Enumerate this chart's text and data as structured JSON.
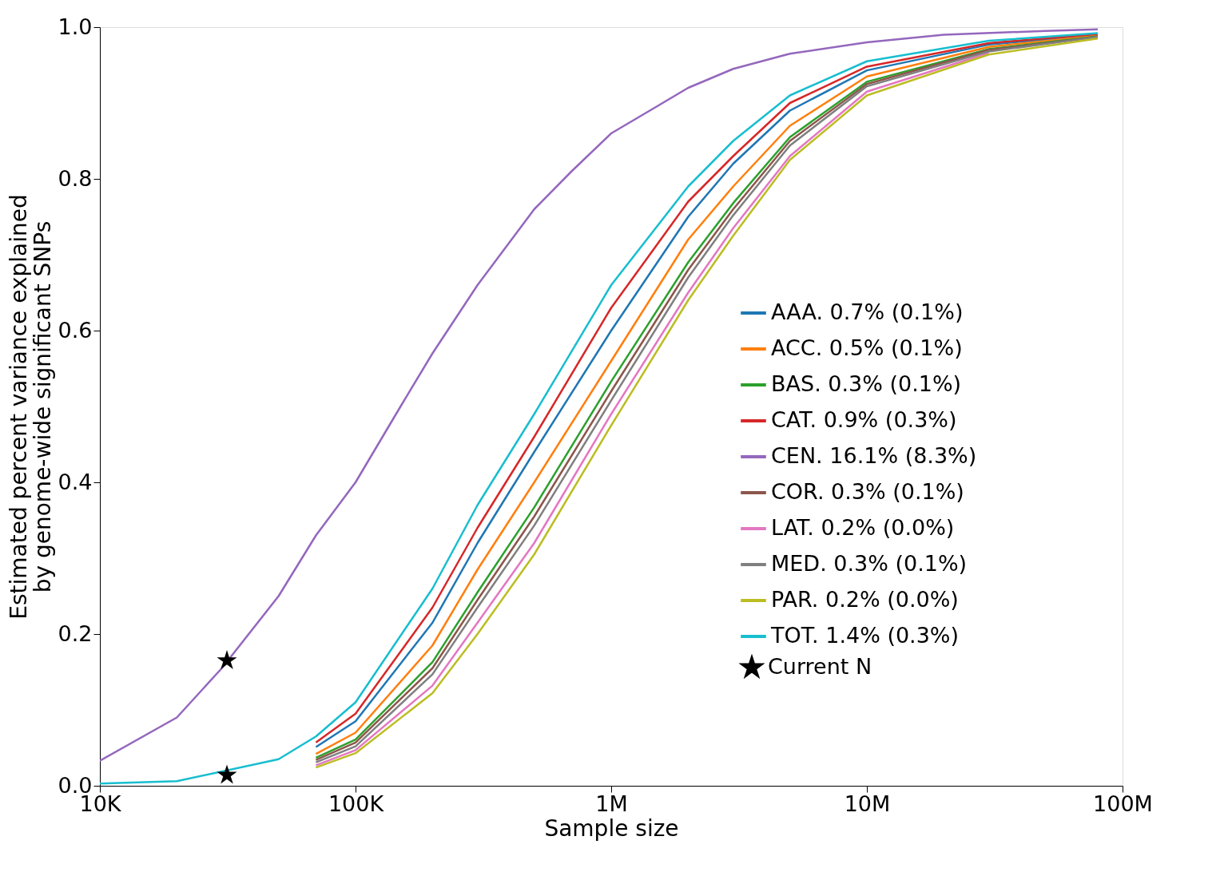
{
  "chart_data": {
    "type": "line",
    "xlabel": "Sample size",
    "ylabel": "Estimated percent variance explained\nby genome-wide significant SNPs",
    "log": "x",
    "grid": false,
    "legend": "right",
    "line_style": "solid",
    "marker": "none",
    "xlim": [
      10000,
      100000000
    ],
    "xticks": [
      {
        "value": 10000,
        "label": "10K"
      },
      {
        "value": 100000,
        "label": "100K"
      },
      {
        "value": 1000000,
        "label": "1M"
      },
      {
        "value": 10000000,
        "label": "10M"
      },
      {
        "value": 100000000,
        "label": "100M"
      }
    ],
    "ylim": [
      0,
      1
    ],
    "yticks": [
      {
        "value": 0,
        "label": "0.0"
      },
      {
        "value": 0.2,
        "label": "0.2"
      },
      {
        "value": 0.4,
        "label": "0.4"
      },
      {
        "value": 0.6,
        "label": "0.6"
      },
      {
        "value": 0.8,
        "label": "0.8"
      },
      {
        "value": 1,
        "label": "1.0"
      }
    ],
    "x": [
      10000,
      20000,
      50000,
      70000,
      100000,
      200000,
      300000,
      500000,
      1000000,
      2000000,
      3000000,
      5000000,
      10000000,
      30000000,
      80000000
    ],
    "series": [
      {
        "name": "AAA. 0.7% (0.1%)",
        "color": "#1f77b4",
        "values": [
          null,
          null,
          null,
          0.051,
          0.085,
          0.215,
          0.32,
          0.44,
          0.6,
          0.75,
          0.82,
          0.89,
          0.943,
          0.977,
          0.99
        ]
      },
      {
        "name": "ACC. 0.5% (0.1%)",
        "color": "#ff7f0e",
        "values": [
          null,
          null,
          null,
          0.042,
          0.07,
          0.185,
          0.285,
          0.4,
          0.56,
          0.72,
          0.79,
          0.87,
          0.935,
          0.974,
          0.989
        ]
      },
      {
        "name": "BAS. 0.3% (0.1%)",
        "color": "#2ca02c",
        "values": [
          null,
          null,
          null,
          0.037,
          0.061,
          0.163,
          0.255,
          0.367,
          0.533,
          0.69,
          0.768,
          0.855,
          0.928,
          0.971,
          0.988
        ]
      },
      {
        "name": "CAT. 0.9% (0.3%)",
        "color": "#d62728",
        "values": [
          null,
          null,
          null,
          0.057,
          0.095,
          0.235,
          0.34,
          0.46,
          0.63,
          0.77,
          0.83,
          0.9,
          0.948,
          0.979,
          0.991
        ]
      },
      {
        "name": "CEN. 16.1% (8.3%)",
        "color": "#9467bd",
        "x": [
          10000,
          20000,
          30000,
          50000,
          70000,
          100000,
          150000,
          200000,
          300000,
          500000,
          700000,
          1000000,
          1500000,
          2000000,
          3000000,
          5000000,
          10000000,
          20000000,
          50000000,
          80000000
        ],
        "values": [
          0.033,
          0.09,
          0.155,
          0.25,
          0.33,
          0.4,
          0.5,
          0.57,
          0.66,
          0.76,
          0.81,
          0.86,
          0.895,
          0.92,
          0.945,
          0.965,
          0.98,
          0.99,
          0.995,
          0.997
        ]
      },
      {
        "name": "COR. 0.3% (0.1%)",
        "color": "#8c564b",
        "values": [
          null,
          null,
          null,
          0.034,
          0.057,
          0.155,
          0.245,
          0.355,
          0.52,
          0.68,
          0.76,
          0.85,
          0.925,
          0.97,
          0.987
        ]
      },
      {
        "name": "LAT. 0.2% (0.0%)",
        "color": "#e377c2",
        "values": [
          null,
          null,
          null,
          0.027,
          0.047,
          0.132,
          0.215,
          0.32,
          0.49,
          0.65,
          0.735,
          0.83,
          0.915,
          0.966,
          null
        ]
      },
      {
        "name": "MED. 0.3% (0.1%)",
        "color": "#7f7f7f",
        "values": [
          null,
          null,
          null,
          0.031,
          0.052,
          0.147,
          0.235,
          0.343,
          0.508,
          0.67,
          0.752,
          0.844,
          0.922,
          0.968,
          0.987
        ]
      },
      {
        "name": "PAR. 0.2% (0.0%)",
        "color": "#bcbd22",
        "values": [
          null,
          null,
          null,
          0.024,
          0.043,
          0.122,
          0.2,
          0.305,
          0.475,
          0.64,
          0.725,
          0.825,
          0.91,
          0.964,
          0.985
        ]
      },
      {
        "name": "TOT. 1.4% (0.3%)",
        "color": "#17becf",
        "values": [
          0.003,
          0.006,
          0.035,
          0.065,
          0.11,
          0.26,
          0.37,
          0.49,
          0.66,
          0.79,
          0.85,
          0.91,
          0.955,
          0.982,
          0.992
        ]
      },
      {
        "name": "Current N",
        "type": "scatter",
        "marker": "star",
        "color": "#000000",
        "x": [
          31400,
          31400
        ],
        "values": [
          0.165,
          0.014
        ]
      }
    ]
  }
}
